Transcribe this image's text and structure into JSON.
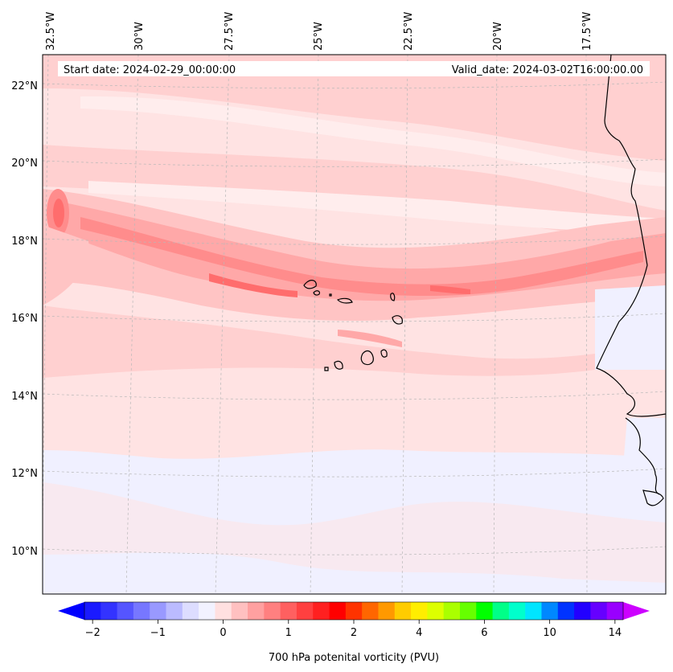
{
  "header": {
    "start_date": "Start date: 2024-02-29_00:00:00",
    "valid_date": "Valid_date: 2024-03-02T16:00:00.00"
  },
  "map": {
    "lon_labels": [
      "32.5°W",
      "30°W",
      "27.5°W",
      "25°W",
      "22.5°W",
      "20°W",
      "17.5°W"
    ],
    "lat_labels": [
      "22°N",
      "20°N",
      "18°N",
      "16°N",
      "14°N",
      "12°N",
      "10°N"
    ],
    "gridlines": "dashed-light-gray",
    "coastline_color": "#000000"
  },
  "colorbar": {
    "label": "700 hPa potenital vorticity (PVU)",
    "tick_labels": [
      "−2",
      "−1",
      "0",
      "1",
      "2",
      "4",
      "6",
      "10",
      "14"
    ],
    "colors": [
      "#1a1aff",
      "#3333ff",
      "#5555ff",
      "#7777ff",
      "#9999ff",
      "#bbbbff",
      "#ddddff",
      "#f2f2ff",
      "#ffe0e0",
      "#ffc0c0",
      "#ffa0a0",
      "#ff8080",
      "#ff6060",
      "#ff4040",
      "#ff2020",
      "#ff0000",
      "#ff3300",
      "#ff6600",
      "#ff9900",
      "#ffcc00",
      "#ffee00",
      "#ddff00",
      "#aaff00",
      "#66ff00",
      "#00ff00",
      "#00ff88",
      "#00ffcc",
      "#00e5ff",
      "#0088ff",
      "#0033ff",
      "#2200ff",
      "#6600ff",
      "#9900ff"
    ],
    "under_color": "#0000ff",
    "over_color": "#cc00ff"
  },
  "chart_data": {
    "type": "heatmap",
    "variable": "700 hPa potenital vorticity (PVU)",
    "lon_range_deg_east": [
      -32.6,
      -15.1
    ],
    "lat_range_deg_north": [
      8.9,
      22.8
    ],
    "colorbar_ticks": [
      -2,
      -1,
      0,
      1,
      2,
      4,
      6,
      10,
      14
    ],
    "features": [
      {
        "desc": "background PV",
        "value_range": [
          0,
          0.25
        ]
      },
      {
        "desc": "northern band (lat 20-22N)",
        "value_range": [
          0.25,
          0.5
        ]
      },
      {
        "desc": "main enhanced band lat 16-19N",
        "value_range": [
          0.5,
          1.25
        ]
      },
      {
        "desc": "max near 32.3W 18.7N",
        "value_range": [
          1.0,
          1.25
        ]
      },
      {
        "desc": "low PV region lat 9-13N",
        "value_range": [
          -0.25,
          0
        ]
      }
    ]
  }
}
